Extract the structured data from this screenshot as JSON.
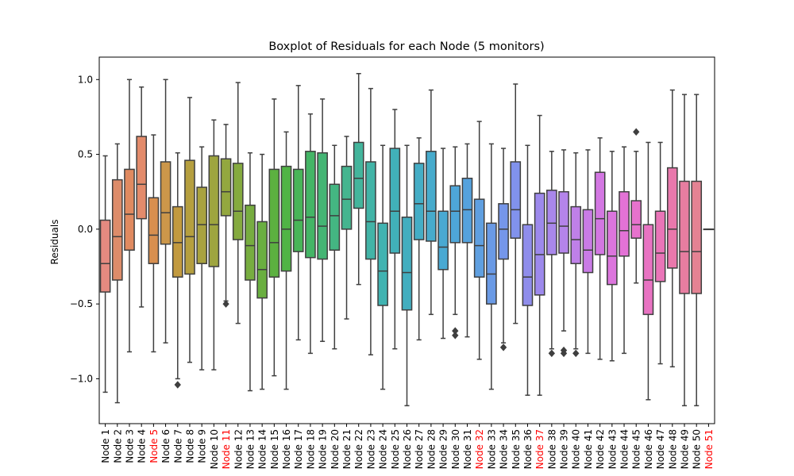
{
  "chart_data": {
    "type": "boxplot",
    "title": "Boxplot of Residuals for each Node (5 monitors)",
    "xlabel": "",
    "ylabel": "Residuals",
    "ylim": [
      -1.3,
      1.15
    ],
    "yticks": [
      -1.0,
      -0.5,
      0.0,
      0.5,
      1.0
    ],
    "ytick_labels": [
      "−1.0",
      "−0.5",
      "0.0",
      "0.5",
      "1.0"
    ],
    "grid": false,
    "highlight_color": "#ff0000",
    "categories": [
      "Node 1",
      "Node 2",
      "Node 3",
      "Node 4",
      "Node 5",
      "Node 6",
      "Node 7",
      "Node 8",
      "Node 9",
      "Node 10",
      "Node 11",
      "Node 12",
      "Node 13",
      "Node 14",
      "Node 15",
      "Node 16",
      "Node 17",
      "Node 18",
      "Node 19",
      "Node 20",
      "Node 21",
      "Node 22",
      "Node 23",
      "Node 24",
      "Node 25",
      "Node 26",
      "Node 27",
      "Node 28",
      "Node 29",
      "Node 30",
      "Node 31",
      "Node 32",
      "Node 33",
      "Node 34",
      "Node 35",
      "Node 36",
      "Node 37",
      "Node 38",
      "Node 39",
      "Node 40",
      "Node 41",
      "Node 42",
      "Node 43",
      "Node 44",
      "Node 45",
      "Node 46",
      "Node 47",
      "Node 48",
      "Node 49",
      "Node 50",
      "Node 51"
    ],
    "highlighted": [
      "Node 5",
      "Node 11",
      "Node 32",
      "Node 37",
      "Node 51"
    ],
    "boxes": [
      {
        "min": -1.09,
        "q1": -0.42,
        "median": -0.23,
        "q3": 0.06,
        "max": 0.49,
        "outliers": []
      },
      {
        "min": -1.16,
        "q1": -0.34,
        "median": -0.05,
        "q3": 0.33,
        "max": 0.57,
        "outliers": []
      },
      {
        "min": -0.82,
        "q1": -0.14,
        "median": 0.1,
        "q3": 0.4,
        "max": 1.0,
        "outliers": []
      },
      {
        "min": -0.52,
        "q1": 0.07,
        "median": 0.3,
        "q3": 0.62,
        "max": 0.95,
        "outliers": []
      },
      {
        "min": -0.82,
        "q1": -0.23,
        "median": -0.04,
        "q3": 0.21,
        "max": 0.63,
        "outliers": []
      },
      {
        "min": -0.76,
        "q1": -0.1,
        "median": 0.11,
        "q3": 0.45,
        "max": 1.0,
        "outliers": []
      },
      {
        "min": -1.0,
        "q1": -0.32,
        "median": -0.09,
        "q3": 0.15,
        "max": 0.51,
        "outliers": [
          -1.04
        ]
      },
      {
        "min": -0.89,
        "q1": -0.3,
        "median": -0.05,
        "q3": 0.46,
        "max": 0.88,
        "outliers": []
      },
      {
        "min": -0.94,
        "q1": -0.23,
        "median": 0.03,
        "q3": 0.28,
        "max": 0.55,
        "outliers": []
      },
      {
        "min": -0.94,
        "q1": -0.25,
        "median": 0.03,
        "q3": 0.49,
        "max": 0.73,
        "outliers": []
      },
      {
        "min": -0.48,
        "q1": 0.09,
        "median": 0.25,
        "q3": 0.47,
        "max": 0.7,
        "outliers": [
          -0.5
        ]
      },
      {
        "min": -0.63,
        "q1": -0.07,
        "median": 0.12,
        "q3": 0.44,
        "max": 0.98,
        "outliers": []
      },
      {
        "min": -1.08,
        "q1": -0.34,
        "median": -0.11,
        "q3": 0.16,
        "max": 0.51,
        "outliers": []
      },
      {
        "min": -1.07,
        "q1": -0.46,
        "median": -0.27,
        "q3": 0.05,
        "max": 0.5,
        "outliers": []
      },
      {
        "min": -0.98,
        "q1": -0.32,
        "median": -0.09,
        "q3": 0.4,
        "max": 0.87,
        "outliers": []
      },
      {
        "min": -1.07,
        "q1": -0.28,
        "median": 0.0,
        "q3": 0.42,
        "max": 0.65,
        "outliers": []
      },
      {
        "min": -0.74,
        "q1": -0.15,
        "median": 0.06,
        "q3": 0.4,
        "max": 0.96,
        "outliers": []
      },
      {
        "min": -0.83,
        "q1": -0.19,
        "median": 0.08,
        "q3": 0.52,
        "max": 0.77,
        "outliers": []
      },
      {
        "min": -0.75,
        "q1": -0.2,
        "median": 0.02,
        "q3": 0.51,
        "max": 0.87,
        "outliers": []
      },
      {
        "min": -0.8,
        "q1": -0.14,
        "median": 0.09,
        "q3": 0.3,
        "max": 0.56,
        "outliers": []
      },
      {
        "min": -0.6,
        "q1": 0.0,
        "median": 0.2,
        "q3": 0.42,
        "max": 0.62,
        "outliers": []
      },
      {
        "min": -0.37,
        "q1": 0.14,
        "median": 0.34,
        "q3": 0.58,
        "max": 1.04,
        "outliers": []
      },
      {
        "min": -0.84,
        "q1": -0.2,
        "median": 0.05,
        "q3": 0.45,
        "max": 0.94,
        "outliers": []
      },
      {
        "min": -1.07,
        "q1": -0.51,
        "median": -0.28,
        "q3": 0.04,
        "max": 0.56,
        "outliers": []
      },
      {
        "min": -0.8,
        "q1": -0.16,
        "median": 0.12,
        "q3": 0.54,
        "max": 0.8,
        "outliers": []
      },
      {
        "min": -1.18,
        "q1": -0.54,
        "median": -0.29,
        "q3": 0.08,
        "max": 0.56,
        "outliers": []
      },
      {
        "min": -0.74,
        "q1": -0.07,
        "median": 0.17,
        "q3": 0.44,
        "max": 0.61,
        "outliers": []
      },
      {
        "min": -0.57,
        "q1": -0.08,
        "median": 0.12,
        "q3": 0.52,
        "max": 0.93,
        "outliers": []
      },
      {
        "min": -0.73,
        "q1": -0.27,
        "median": -0.12,
        "q3": 0.12,
        "max": 0.54,
        "outliers": []
      },
      {
        "min": -0.57,
        "q1": -0.09,
        "median": 0.12,
        "q3": 0.29,
        "max": 0.55,
        "outliers": [
          -0.68,
          -0.71
        ]
      },
      {
        "min": -0.72,
        "q1": -0.09,
        "median": 0.13,
        "q3": 0.34,
        "max": 0.57,
        "outliers": []
      },
      {
        "min": -0.87,
        "q1": -0.32,
        "median": -0.11,
        "q3": 0.2,
        "max": 0.72,
        "outliers": []
      },
      {
        "min": -1.07,
        "q1": -0.5,
        "median": -0.3,
        "q3": 0.04,
        "max": 0.57,
        "outliers": []
      },
      {
        "min": -0.76,
        "q1": -0.2,
        "median": 0.0,
        "q3": 0.17,
        "max": 0.54,
        "outliers": [
          -0.79
        ]
      },
      {
        "min": -0.63,
        "q1": -0.06,
        "median": 0.13,
        "q3": 0.45,
        "max": 0.97,
        "outliers": []
      },
      {
        "min": -1.11,
        "q1": -0.51,
        "median": -0.32,
        "q3": 0.03,
        "max": 0.56,
        "outliers": []
      },
      {
        "min": -1.11,
        "q1": -0.44,
        "median": -0.17,
        "q3": 0.24,
        "max": 0.76,
        "outliers": []
      },
      {
        "min": -0.8,
        "q1": -0.17,
        "median": 0.04,
        "q3": 0.26,
        "max": 0.52,
        "outliers": [
          -0.83
        ]
      },
      {
        "min": -0.68,
        "q1": -0.16,
        "median": 0.02,
        "q3": 0.25,
        "max": 0.53,
        "outliers": [
          -0.81,
          -0.83
        ]
      },
      {
        "min": -0.8,
        "q1": -0.23,
        "median": -0.07,
        "q3": 0.15,
        "max": 0.51,
        "outliers": [
          -0.83
        ]
      },
      {
        "min": -0.83,
        "q1": -0.29,
        "median": -0.14,
        "q3": 0.13,
        "max": 0.53,
        "outliers": []
      },
      {
        "min": -0.87,
        "q1": -0.17,
        "median": 0.07,
        "q3": 0.38,
        "max": 0.61,
        "outliers": []
      },
      {
        "min": -0.88,
        "q1": -0.37,
        "median": -0.18,
        "q3": 0.12,
        "max": 0.52,
        "outliers": []
      },
      {
        "min": -0.83,
        "q1": -0.18,
        "median": -0.01,
        "q3": 0.25,
        "max": 0.55,
        "outliers": []
      },
      {
        "min": -0.36,
        "q1": -0.06,
        "median": 0.03,
        "q3": 0.19,
        "max": 0.52,
        "outliers": [
          0.65
        ]
      },
      {
        "min": -1.14,
        "q1": -0.57,
        "median": -0.34,
        "q3": 0.03,
        "max": 0.58,
        "outliers": []
      },
      {
        "min": -0.9,
        "q1": -0.35,
        "median": -0.16,
        "q3": 0.12,
        "max": 0.58,
        "outliers": []
      },
      {
        "min": -0.92,
        "q1": -0.26,
        "median": 0.0,
        "q3": 0.41,
        "max": 0.93,
        "outliers": []
      },
      {
        "min": -1.18,
        "q1": -0.43,
        "median": -0.15,
        "q3": 0.32,
        "max": 0.9,
        "outliers": []
      },
      {
        "min": -1.18,
        "q1": -0.43,
        "median": -0.15,
        "q3": 0.32,
        "max": 0.9,
        "outliers": []
      },
      {
        "min": 0.0,
        "q1": 0.0,
        "median": 0.0,
        "q3": 0.0,
        "max": 0.0,
        "outliers": []
      }
    ],
    "colors": [
      "#e58a80",
      "#dd8c6a",
      "#e08a60",
      "#e38b6b",
      "#d88f4f",
      "#cc974a",
      "#c29a3f",
      "#b59f3f",
      "#a9a23f",
      "#9ea53f",
      "#93a73f",
      "#85aa3f",
      "#77ad40",
      "#6aaf40",
      "#5cb140",
      "#50b445",
      "#48b558",
      "#44b566",
      "#44b574",
      "#44b682",
      "#45b58f",
      "#44b59c",
      "#42b4a7",
      "#40b3b1",
      "#41b1b9",
      "#42aebf",
      "#44adc5",
      "#47abcc",
      "#49a9d2",
      "#4ea6d8",
      "#55a2dd",
      "#5f9fe0",
      "#6a9ae5",
      "#7596ea",
      "#8192ec",
      "#8f8deb",
      "#9d89ec",
      "#a987eb",
      "#b484ea",
      "#bf80e8",
      "#c97be6",
      "#d377e2",
      "#dc75dd",
      "#e372d6",
      "#e772cd",
      "#e873c2",
      "#e975b8",
      "#e978ac",
      "#e77da0",
      "#e48293",
      "#e08888"
    ]
  }
}
